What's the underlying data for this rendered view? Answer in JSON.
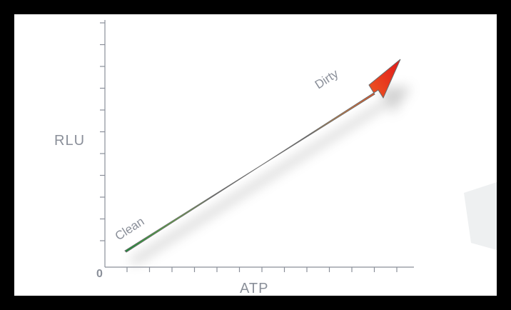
{
  "diagram": {
    "y_axis_label": "RLU",
    "x_axis_label": "ATP",
    "origin_label": "0",
    "arrow_start_label": "Clean",
    "arrow_end_label": "Dirty"
  },
  "colors": {
    "background": "#ffffff",
    "frame": "#000000",
    "axis": "#8a8f99",
    "gradient_start": "#1f8a3c",
    "gradient_mid_green": "#8cd43a",
    "gradient_mid_yellow": "#f5e83a",
    "gradient_mid_orange": "#f58a2a",
    "gradient_end": "#e21a1a"
  }
}
